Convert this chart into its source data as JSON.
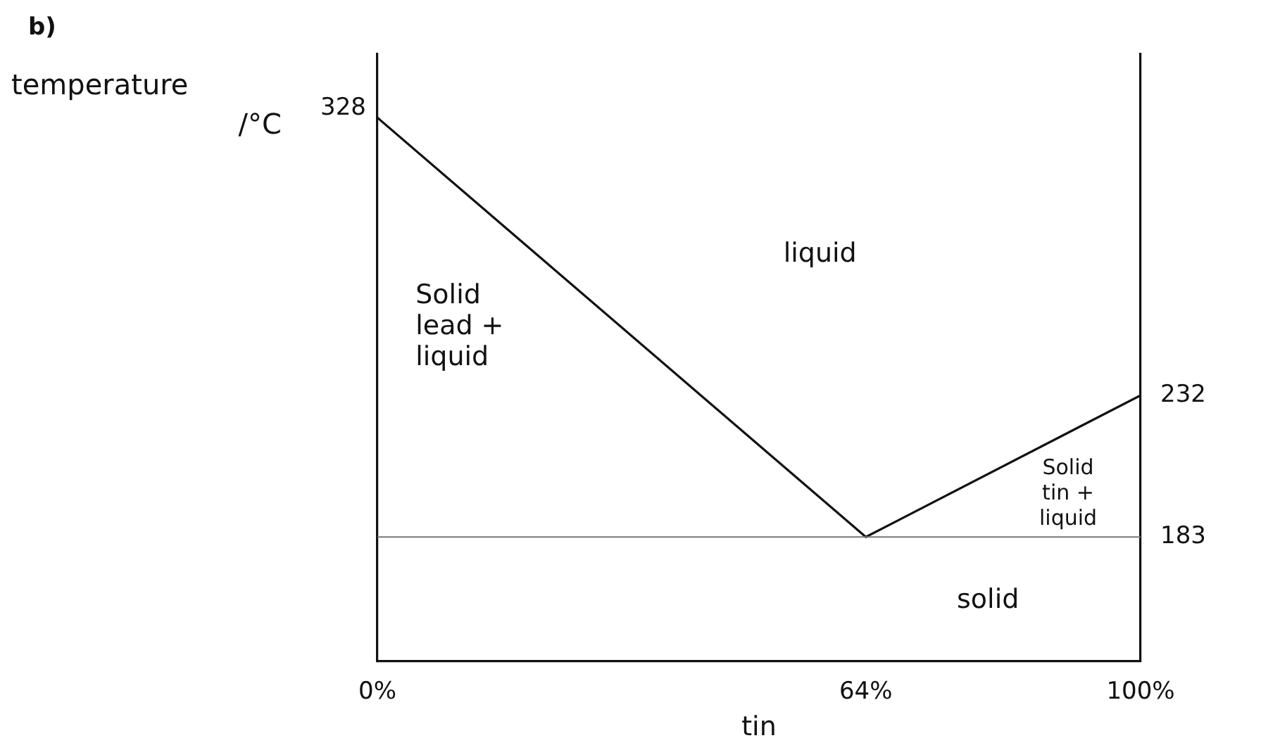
{
  "chart_data": {
    "type": "line",
    "title": "b)",
    "xlabel": "tin",
    "ylabel": "temperature /°C",
    "x": [
      0,
      64,
      100
    ],
    "series": [
      {
        "color": "#111111",
        "axis": "y2",
        "values": [
          328,
          183,
          232
        ],
        "value_labels": [
          "328",
          null,
          null
        ]
      }
    ],
    "xlim": [
      0,
      100
    ],
    "xticks": [
      {
        "value": 0,
        "label": "0%"
      },
      {
        "value": 64,
        "label": "64%"
      },
      {
        "value": 100,
        "label": "100%"
      }
    ],
    "y2lim": [
      140,
      350
    ],
    "y2ticks": [
      183,
      232
    ],
    "ref_lines": [
      {
        "axis": "y2",
        "value": 183,
        "color": "#777777"
      }
    ],
    "annotations": [
      "liquid",
      "Solid\nlead +\nliquid",
      "Solid\ntin +\nliquid",
      "solid"
    ],
    "grid": false,
    "legend": false,
    "marker": "none",
    "line_style": "solid"
  }
}
